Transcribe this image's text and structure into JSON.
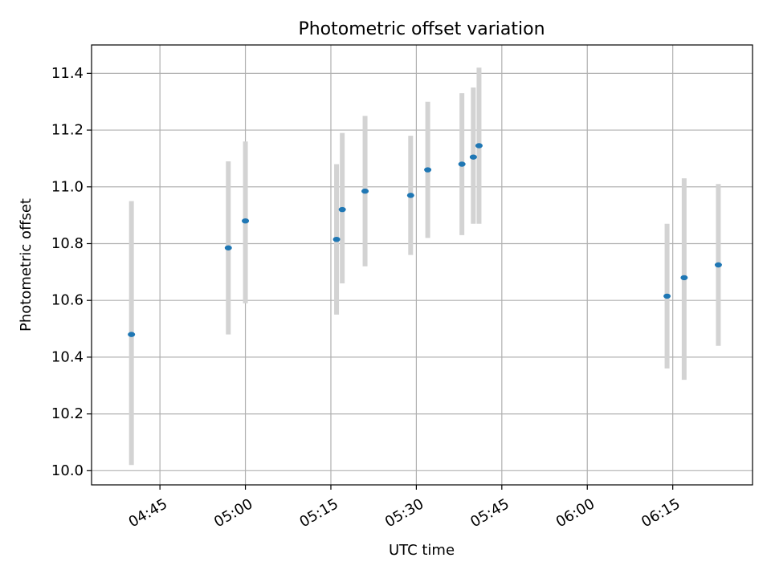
{
  "chart_data": {
    "type": "scatter",
    "title": "Photometric offset variation",
    "xlabel": "UTC time",
    "ylabel": "Photometric offset",
    "x_ticks": [
      "04:45",
      "05:00",
      "05:15",
      "05:30",
      "05:45",
      "06:00",
      "06:15"
    ],
    "x_tick_minutes": [
      285,
      300,
      315,
      330,
      345,
      360,
      375
    ],
    "xlim": [
      "04:33",
      "06:29"
    ],
    "y_ticks": [
      "10.0",
      "10.2",
      "10.4",
      "10.6",
      "10.8",
      "11.0",
      "11.2",
      "11.4"
    ],
    "y_tick_values": [
      10.0,
      10.2,
      10.4,
      10.6,
      10.8,
      11.0,
      11.2,
      11.4
    ],
    "ylim": [
      9.95,
      11.5
    ],
    "grid": true,
    "marker_color": "#1f77b4",
    "errorbar_color": "#d3d3d3",
    "points": [
      {
        "time": "04:40",
        "y": 10.48,
        "err_low": 10.02,
        "err_high": 10.95
      },
      {
        "time": "04:57",
        "y": 10.785,
        "err_low": 10.48,
        "err_high": 11.09
      },
      {
        "time": "05:00",
        "y": 10.88,
        "err_low": 10.59,
        "err_high": 11.16
      },
      {
        "time": "05:16",
        "y": 10.815,
        "err_low": 10.55,
        "err_high": 11.08
      },
      {
        "time": "05:17",
        "y": 10.92,
        "err_low": 10.66,
        "err_high": 11.19
      },
      {
        "time": "05:21",
        "y": 10.985,
        "err_low": 10.72,
        "err_high": 11.25
      },
      {
        "time": "05:29",
        "y": 10.97,
        "err_low": 10.76,
        "err_high": 11.18
      },
      {
        "time": "05:32",
        "y": 11.06,
        "err_low": 10.82,
        "err_high": 11.3
      },
      {
        "time": "05:38",
        "y": 11.08,
        "err_low": 10.83,
        "err_high": 11.33
      },
      {
        "time": "05:40",
        "y": 11.105,
        "err_low": 10.87,
        "err_high": 11.35
      },
      {
        "time": "05:41",
        "y": 11.145,
        "err_low": 10.87,
        "err_high": 11.42
      },
      {
        "time": "06:14",
        "y": 10.615,
        "err_low": 10.36,
        "err_high": 10.87
      },
      {
        "time": "06:17",
        "y": 10.68,
        "err_low": 10.32,
        "err_high": 11.03
      },
      {
        "time": "06:23",
        "y": 10.725,
        "err_low": 10.44,
        "err_high": 11.01
      }
    ]
  }
}
